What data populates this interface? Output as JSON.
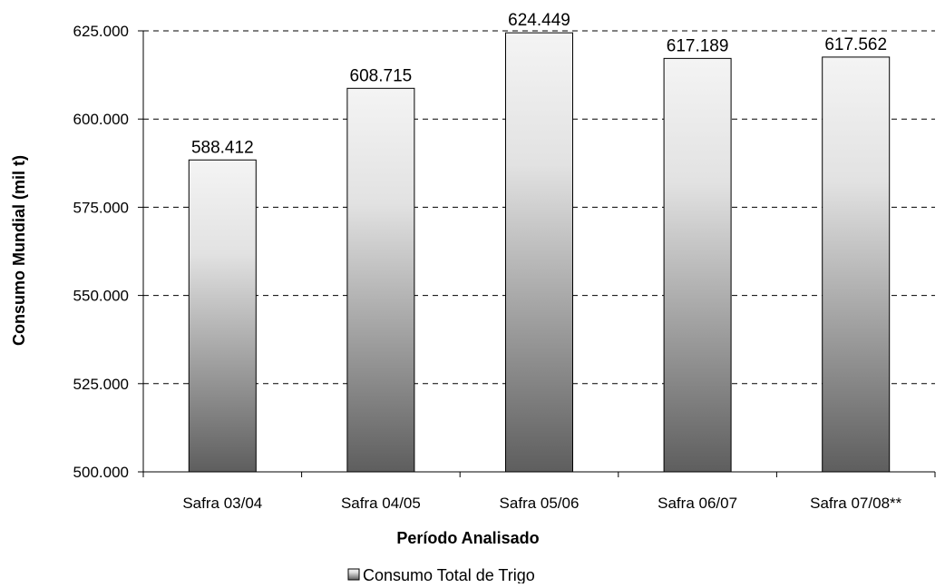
{
  "chart_data": {
    "type": "bar",
    "title": "",
    "xlabel": "Período Analisado",
    "ylabel": "Consumo Mundial (mil t)",
    "categories": [
      "Safra 03/04",
      "Safra 04/05",
      "Safra 05/06",
      "Safra 06/07",
      "Safra 07/08**"
    ],
    "series": [
      {
        "name": "Consumo Total de Trigo",
        "values": [
          588412,
          608715,
          624449,
          617189,
          617562
        ],
        "value_labels": [
          "588.412",
          "608.715",
          "624.449",
          "617.189",
          "617.562"
        ]
      }
    ],
    "ylim": [
      500000,
      625000
    ],
    "yticks": [
      500000,
      525000,
      550000,
      575000,
      600000,
      625000
    ],
    "ytick_labels": [
      "500.000",
      "525.000",
      "550.000",
      "575.000",
      "600.000",
      "625.000"
    ],
    "grid": "horizontal dashed",
    "legend_position": "bottom-center",
    "colors": {
      "bar_gradient_top": "#f4f4f4",
      "bar_gradient_bottom": "#5e5e5e",
      "axis": "#000000",
      "grid": "#000000"
    }
  }
}
